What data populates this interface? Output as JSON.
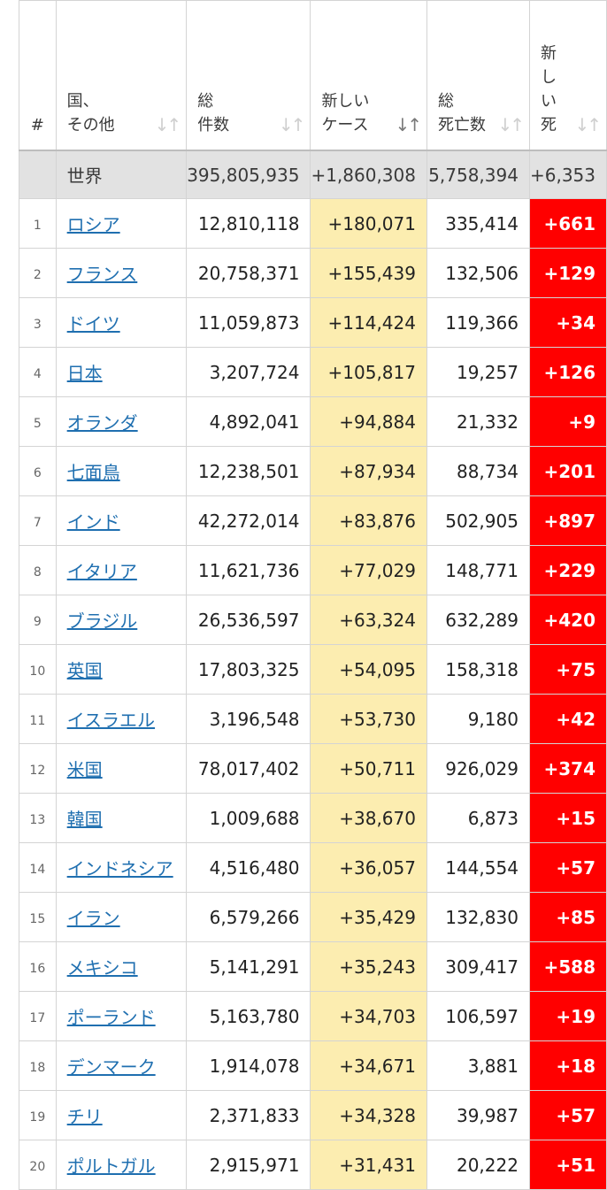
{
  "headers": {
    "idx": "#",
    "country": [
      "国、",
      "その他"
    ],
    "total": [
      "総",
      "件数"
    ],
    "new_cases": [
      "新しい",
      "ケース"
    ],
    "deaths": [
      "総",
      "死亡数"
    ],
    "new_deaths": [
      "新",
      "し",
      "い",
      "死"
    ],
    "sort_glyph": "↓↑"
  },
  "world": {
    "name": "世界",
    "total": "395,805,935",
    "new_cases": "+1,860,308",
    "deaths": "5,758,394",
    "new_deaths": "+6,353"
  },
  "rows": [
    {
      "idx": "1",
      "name": "ロシア",
      "total": "12,810,118",
      "new_cases": "+180,071",
      "deaths": "335,414",
      "new_deaths": "+661"
    },
    {
      "idx": "2",
      "name": "フランス",
      "total": "20,758,371",
      "new_cases": "+155,439",
      "deaths": "132,506",
      "new_deaths": "+129"
    },
    {
      "idx": "3",
      "name": "ドイツ",
      "total": "11,059,873",
      "new_cases": "+114,424",
      "deaths": "119,366",
      "new_deaths": "+34"
    },
    {
      "idx": "4",
      "name": "日本",
      "total": "3,207,724",
      "new_cases": "+105,817",
      "deaths": "19,257",
      "new_deaths": "+126"
    },
    {
      "idx": "5",
      "name": "オランダ",
      "total": "4,892,041",
      "new_cases": "+94,884",
      "deaths": "21,332",
      "new_deaths": "+9"
    },
    {
      "idx": "6",
      "name": "七面鳥",
      "total": "12,238,501",
      "new_cases": "+87,934",
      "deaths": "88,734",
      "new_deaths": "+201"
    },
    {
      "idx": "7",
      "name": "インド",
      "total": "42,272,014",
      "new_cases": "+83,876",
      "deaths": "502,905",
      "new_deaths": "+897"
    },
    {
      "idx": "8",
      "name": "イタリア",
      "total": "11,621,736",
      "new_cases": "+77,029",
      "deaths": "148,771",
      "new_deaths": "+229"
    },
    {
      "idx": "9",
      "name": "ブラジル",
      "total": "26,536,597",
      "new_cases": "+63,324",
      "deaths": "632,289",
      "new_deaths": "+420"
    },
    {
      "idx": "10",
      "name": "英国",
      "total": "17,803,325",
      "new_cases": "+54,095",
      "deaths": "158,318",
      "new_deaths": "+75"
    },
    {
      "idx": "11",
      "name": "イスラエル",
      "total": "3,196,548",
      "new_cases": "+53,730",
      "deaths": "9,180",
      "new_deaths": "+42"
    },
    {
      "idx": "12",
      "name": "米国",
      "total": "78,017,402",
      "new_cases": "+50,711",
      "deaths": "926,029",
      "new_deaths": "+374"
    },
    {
      "idx": "13",
      "name": "韓国",
      "total": "1,009,688",
      "new_cases": "+38,670",
      "deaths": "6,873",
      "new_deaths": "+15"
    },
    {
      "idx": "14",
      "name": "インドネシア",
      "total": "4,516,480",
      "new_cases": "+36,057",
      "deaths": "144,554",
      "new_deaths": "+57"
    },
    {
      "idx": "15",
      "name": "イラン",
      "total": "6,579,266",
      "new_cases": "+35,429",
      "deaths": "132,830",
      "new_deaths": "+85"
    },
    {
      "idx": "16",
      "name": "メキシコ",
      "total": "5,141,291",
      "new_cases": "+35,243",
      "deaths": "309,417",
      "new_deaths": "+588"
    },
    {
      "idx": "17",
      "name": "ポーランド",
      "total": "5,163,780",
      "new_cases": "+34,703",
      "deaths": "106,597",
      "new_deaths": "+19"
    },
    {
      "idx": "18",
      "name": "デンマーク",
      "total": "1,914,078",
      "new_cases": "+34,671",
      "deaths": "3,881",
      "new_deaths": "+18"
    },
    {
      "idx": "19",
      "name": "チリ",
      "total": "2,371,833",
      "new_cases": "+34,328",
      "deaths": "39,987",
      "new_deaths": "+57"
    },
    {
      "idx": "20",
      "name": "ポルトガル",
      "total": "2,915,971",
      "new_cases": "+31,431",
      "deaths": "20,222",
      "new_deaths": "+51"
    }
  ]
}
